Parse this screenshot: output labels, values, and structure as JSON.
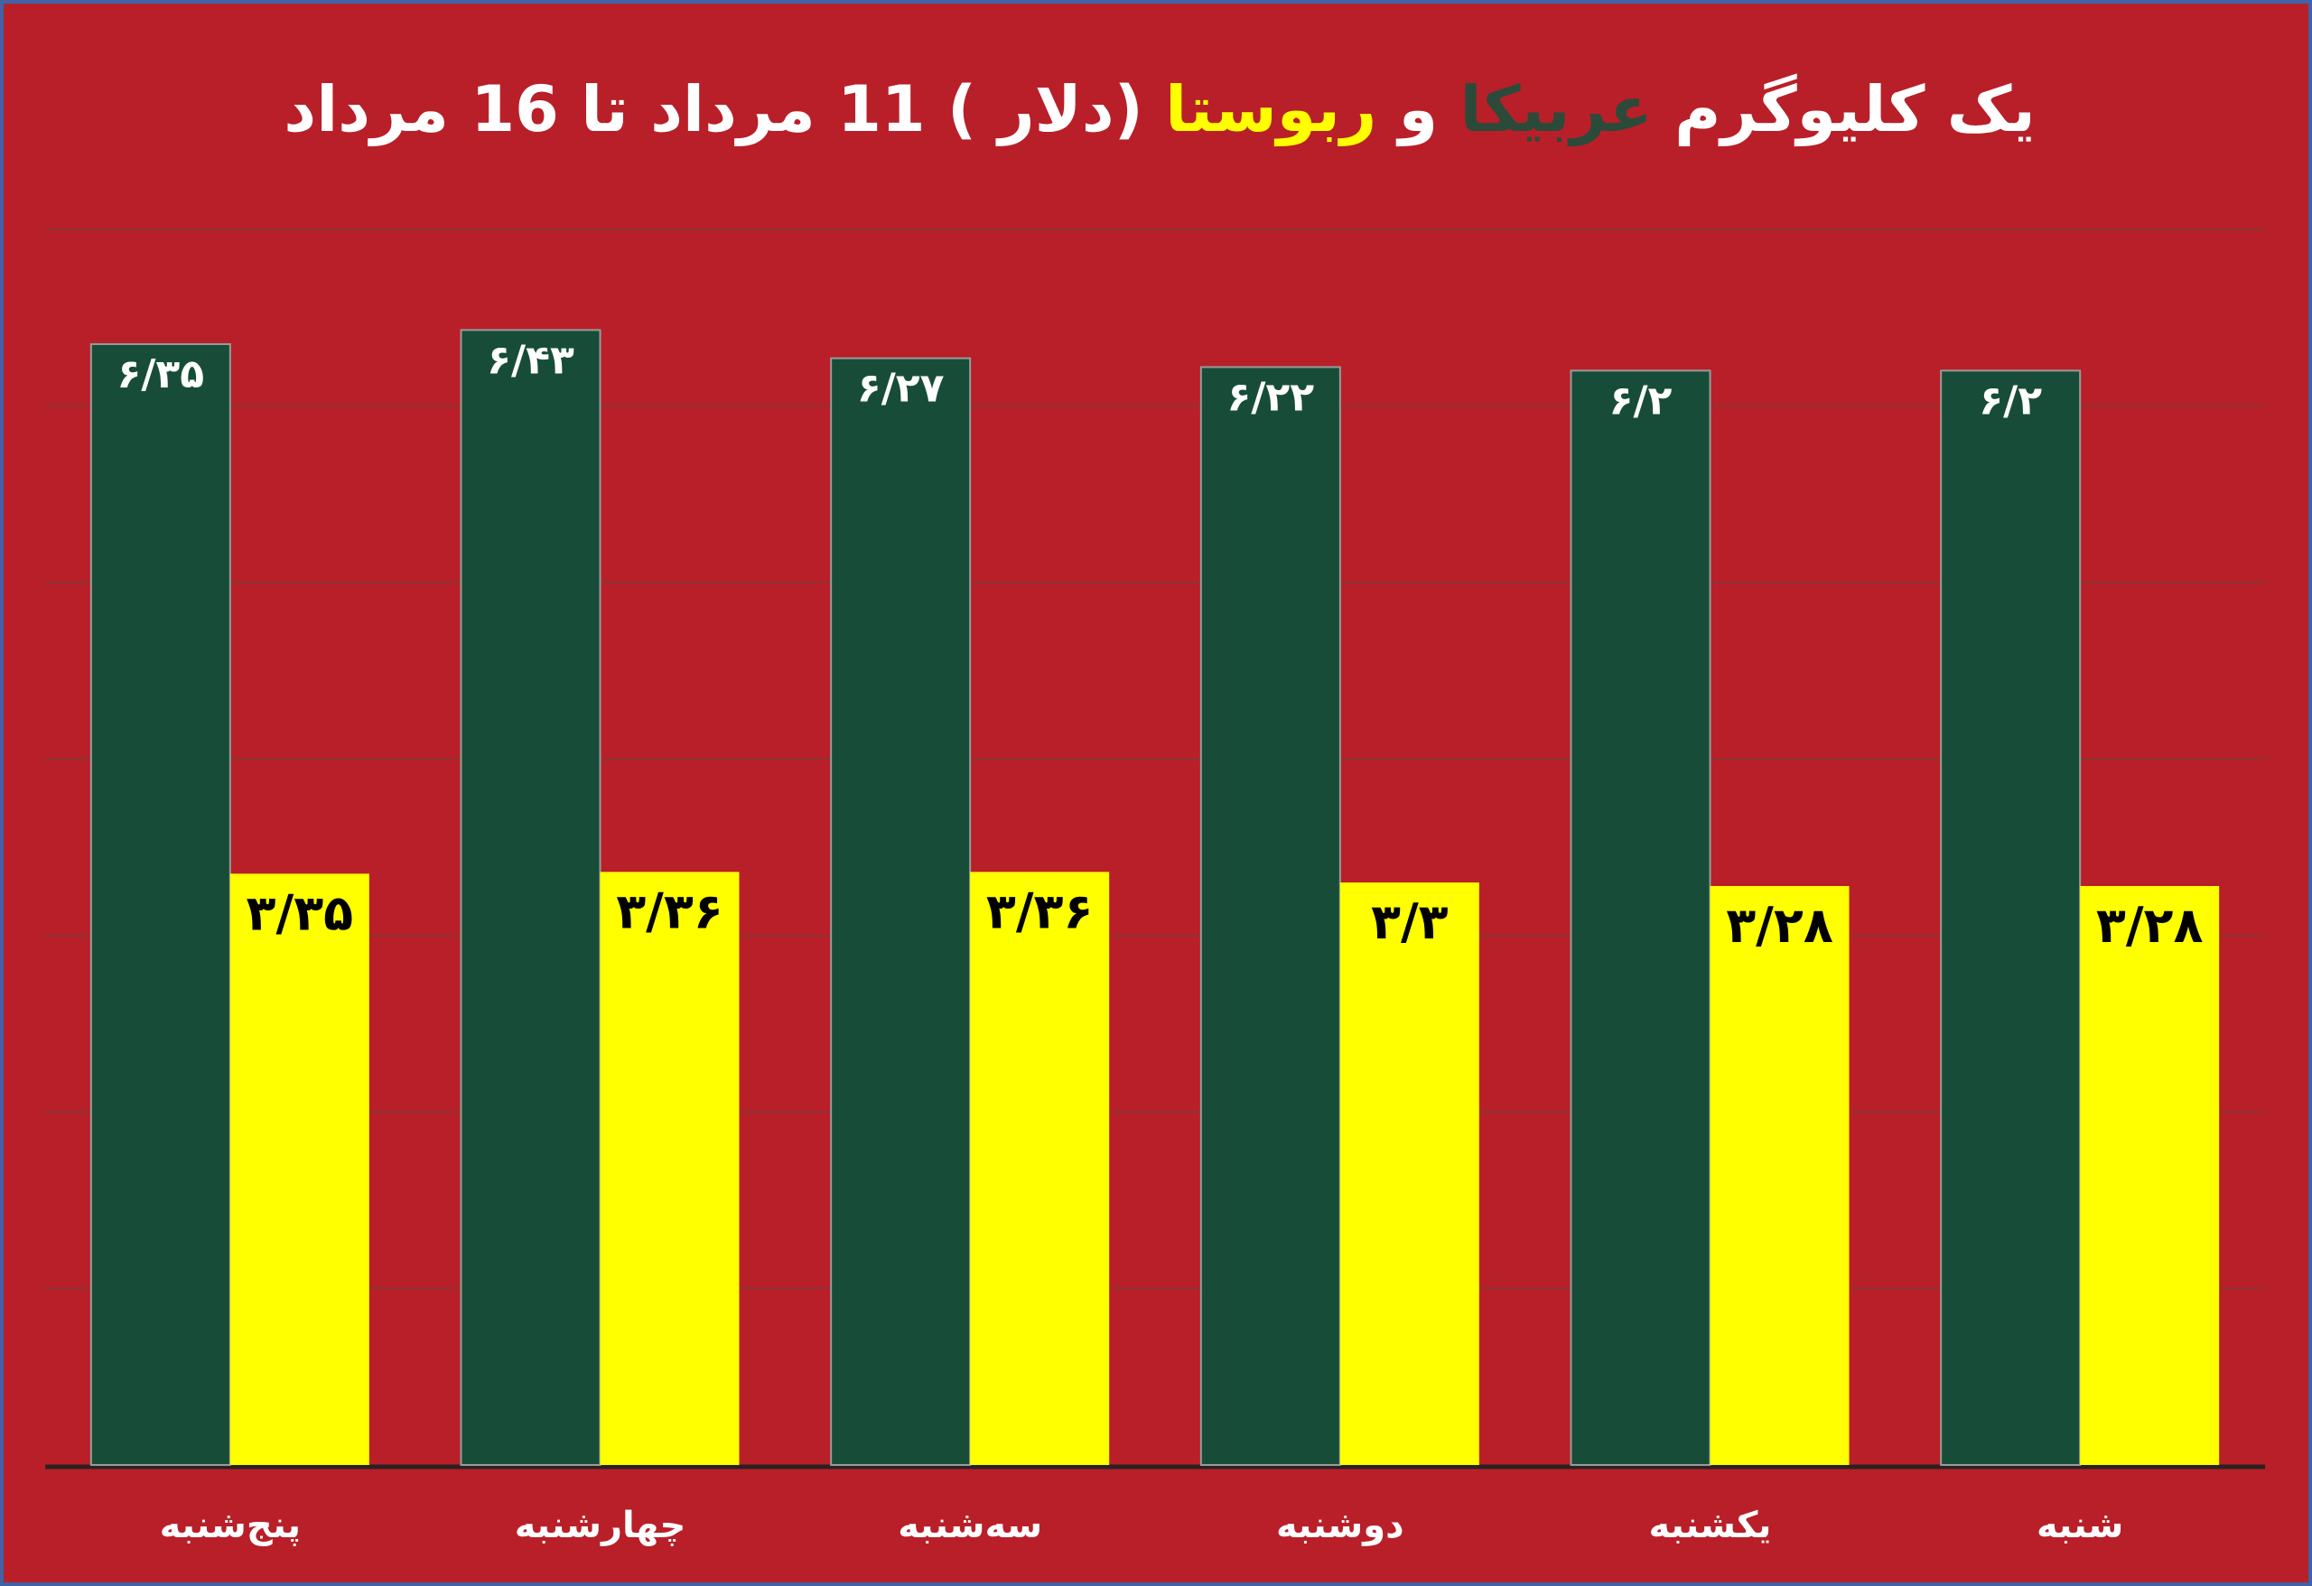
{
  "colors": {
    "background": "#b91f28",
    "frame_border": "#3f63a6",
    "gridline": "#8c3535",
    "axis": "#2a2222",
    "arabica": "#174d38",
    "robusta": "#ffff00",
    "title_text": "#ffffff",
    "title_arabica": "#2b4a3a",
    "title_robusta": "#ffff00"
  },
  "title": {
    "part1": "یک کلیوگرم ",
    "arabica": "عربیکا",
    "part2": " و ",
    "robusta": "ربوستا",
    "part3": " (دلار ) 11 مرداد تا 16 مرداد"
  },
  "chart_data": {
    "type": "bar",
    "categories": [
      "پنج‌شنبه",
      "چهارشنبه",
      "سه‌شنبه",
      "دوشنبه",
      "یکشنبه",
      "شنبه"
    ],
    "series": [
      {
        "name": "عربیکا",
        "values": [
          6.35,
          6.43,
          6.27,
          6.22,
          6.2,
          6.2
        ],
        "labels": [
          "۶/۳۵",
          "۶/۴۳",
          "۶/۲۷",
          "۶/۲۲",
          "۶/۲",
          "۶/۲"
        ]
      },
      {
        "name": "ربوستا",
        "values": [
          3.35,
          3.36,
          3.36,
          3.3,
          3.28,
          3.28
        ],
        "labels": [
          "۳/۳۵",
          "۳/۳۶",
          "۳/۳۶",
          "۳/۳",
          "۳/۲۸",
          "۳/۲۸"
        ]
      }
    ],
    "ylim": [
      0,
      7
    ],
    "grid": true,
    "legend": "none"
  }
}
